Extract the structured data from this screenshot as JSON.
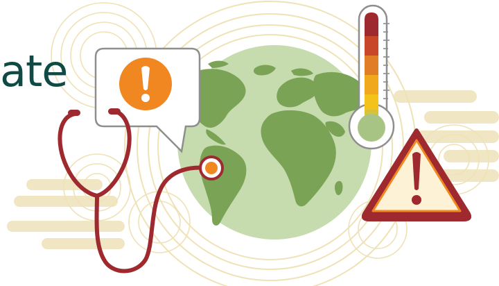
{
  "heading": {
    "text_fragment": "ate"
  },
  "colors": {
    "heading_text": "#0f4a44",
    "globe_ocean": "#c6dcae",
    "globe_land": "#7aa356",
    "stethoscope": "#9e2a2f",
    "alert_badge": "#f08721",
    "speech_bubble_border": "#8e8e8e",
    "thermometer_scale": [
      "#9e2a2f",
      "#c8462a",
      "#e07d26",
      "#f0a91f",
      "#f3c31c",
      "#d9c23a"
    ],
    "thermometer_bulb": "#a8c485",
    "warning_triangle": "#9e2a2f",
    "warning_fill": "#fdf2d6",
    "rings": "#efe2b6",
    "background_stripes": "#f0e6c4"
  },
  "icons": {
    "speech_bubble": "speech-bubble-alert-icon",
    "thermometer": "thermometer-icon",
    "warning": "warning-triangle-icon",
    "stethoscope": "stethoscope-icon",
    "globe": "globe-icon"
  }
}
